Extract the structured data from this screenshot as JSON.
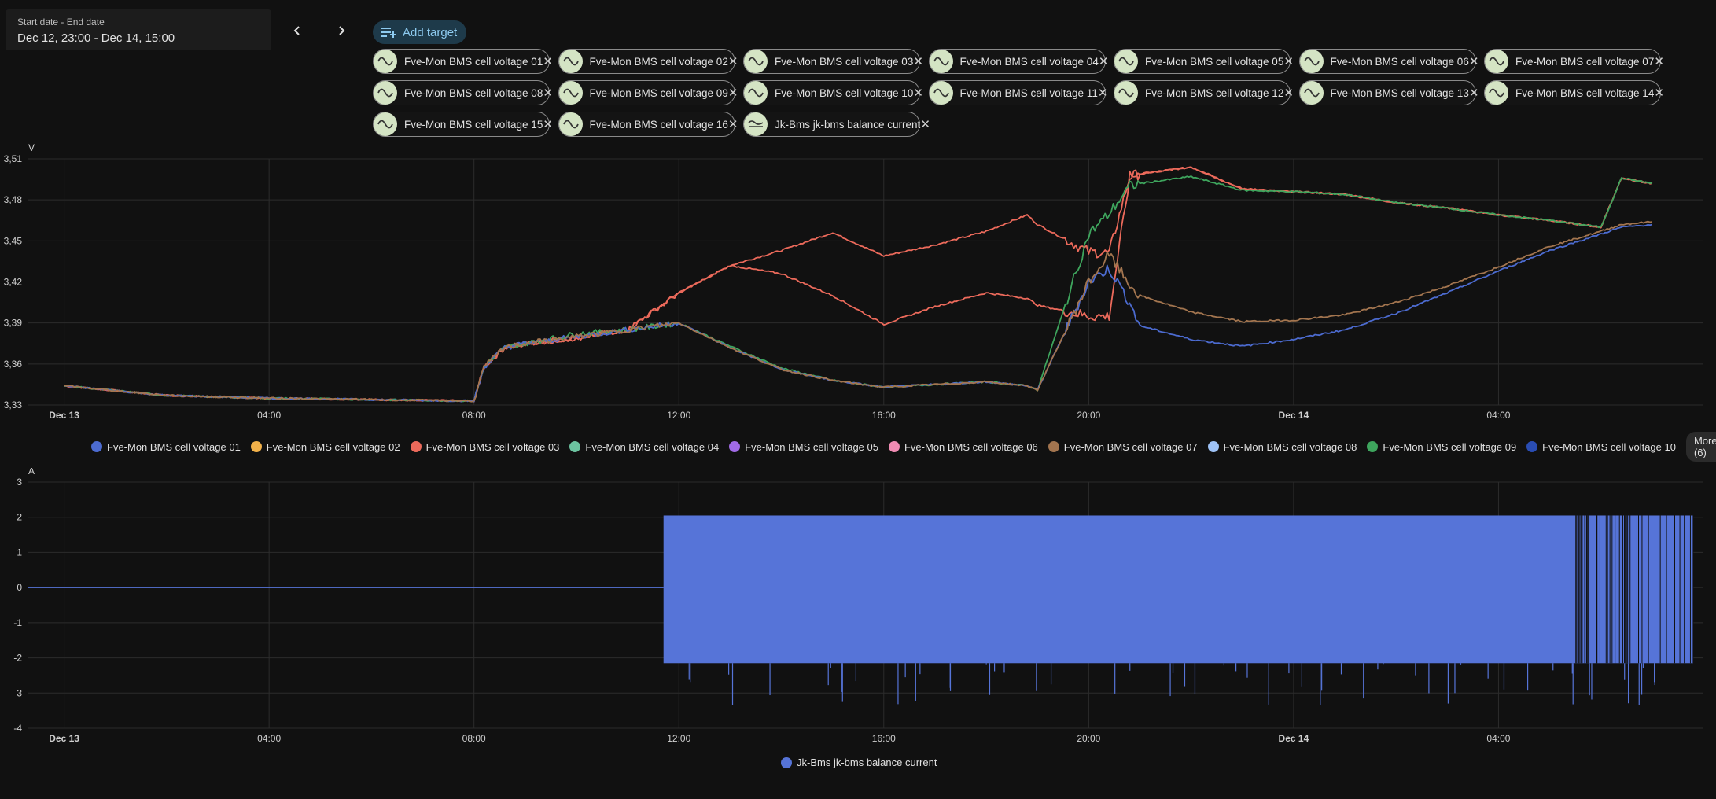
{
  "datepicker": {
    "label": "Start date - End date",
    "value": "Dec 12, 23:00 - Dec 14, 15:00"
  },
  "nav": {
    "prev_icon": "chevron-left-icon",
    "next_icon": "chevron-right-icon"
  },
  "add_target": {
    "label": "Add target",
    "icon": "playlist-plus-icon"
  },
  "chips": [
    "Fve-Mon BMS cell voltage 01",
    "Fve-Mon BMS cell voltage 02",
    "Fve-Mon BMS cell voltage 03",
    "Fve-Mon BMS cell voltage 04",
    "Fve-Mon BMS cell voltage 05",
    "Fve-Mon BMS cell voltage 06",
    "Fve-Mon BMS cell voltage 07",
    "Fve-Mon BMS cell voltage 08",
    "Fve-Mon BMS cell voltage 09",
    "Fve-Mon BMS cell voltage 10",
    "Fve-Mon BMS cell voltage 11",
    "Fve-Mon BMS cell voltage 12",
    "Fve-Mon BMS cell voltage 13",
    "Fve-Mon BMS cell voltage 14",
    "Fve-Mon BMS cell voltage 15",
    "Fve-Mon BMS cell voltage 16",
    "Jk-Bms jk-bms balance current"
  ],
  "colors": {
    "c01": "#4c6bd0",
    "c02": "#f3b24a",
    "c03": "#ec6a5b",
    "c04": "#6cc3a0",
    "c05": "#a16be6",
    "c06": "#f08cb3",
    "c07": "#a3754f",
    "c08": "#9fc3f7",
    "c09": "#3ea55d",
    "c10": "#2a4db3",
    "current": "#5674d8",
    "grid": "#2c2c2c",
    "bg": "#111111"
  },
  "legend_top": {
    "items": [
      "Fve-Mon BMS cell voltage 01",
      "Fve-Mon BMS cell voltage 02",
      "Fve-Mon BMS cell voltage 03",
      "Fve-Mon BMS cell voltage 04",
      "Fve-Mon BMS cell voltage 05",
      "Fve-Mon BMS cell voltage 06",
      "Fve-Mon BMS cell voltage 07",
      "Fve-Mon BMS cell voltage 08",
      "Fve-Mon BMS cell voltage 09",
      "Fve-Mon BMS cell voltage 10"
    ],
    "more_label": "More (6)"
  },
  "legend_bottom": {
    "items": [
      "Jk-Bms jk-bms balance current"
    ]
  },
  "chart_data": [
    {
      "type": "line",
      "title": "",
      "ylabel": "V",
      "ylim": [
        3.33,
        3.51
      ],
      "yticks": [
        "3,51",
        "3,48",
        "3,45",
        "3,42",
        "3,39",
        "3,36",
        "3,33"
      ],
      "x": [
        0,
        2,
        4,
        6,
        8,
        8.2,
        8.6,
        9,
        10,
        11,
        12,
        13,
        14,
        15,
        16,
        17,
        18,
        18.8,
        19,
        20,
        20.4,
        20.8,
        21,
        22,
        23,
        24,
        25,
        26,
        27,
        28,
        29,
        30,
        30.4,
        31
      ],
      "xlabel_ticks": [
        {
          "h": 0,
          "label": "Dec 13",
          "bold": true
        },
        {
          "h": 4,
          "label": "04:00",
          "bold": false
        },
        {
          "h": 8,
          "label": "08:00",
          "bold": false
        },
        {
          "h": 12,
          "label": "12:00",
          "bold": false
        },
        {
          "h": 16,
          "label": "16:00",
          "bold": false
        },
        {
          "h": 20,
          "label": "20:00",
          "bold": false
        },
        {
          "h": 24,
          "label": "Dec 14",
          "bold": true
        },
        {
          "h": 28,
          "label": "04:00",
          "bold": false
        }
      ],
      "xrange_hours": [
        -0.7,
        32.0
      ],
      "series": [
        {
          "name": "Fve-Mon BMS cell voltage 03 (high group)",
          "color": "#ec6a5b",
          "values": [
            3.344,
            3.337,
            3.335,
            3.334,
            3.333,
            3.358,
            3.372,
            3.375,
            3.379,
            3.385,
            3.412,
            3.432,
            3.443,
            3.456,
            3.439,
            3.447,
            3.457,
            3.469,
            3.462,
            3.442,
            3.441,
            3.497,
            3.499,
            3.504,
            3.488,
            3.486,
            3.484,
            3.478,
            3.474,
            3.469,
            3.465,
            3.46,
            3.496,
            3.492
          ]
        },
        {
          "name": "Fve-Mon BMS cell voltage 03 (split)",
          "color": "#ec6a5b",
          "values": [
            3.344,
            3.337,
            3.335,
            3.334,
            3.333,
            3.358,
            3.372,
            3.375,
            3.379,
            3.385,
            3.412,
            3.432,
            3.426,
            3.41,
            3.389,
            3.402,
            3.412,
            3.408,
            3.403,
            3.395,
            3.395,
            3.497,
            3.499,
            3.504,
            3.488,
            3.486,
            3.484,
            3.478,
            3.474,
            3.469,
            3.465,
            3.46,
            3.496,
            3.492
          ]
        },
        {
          "name": "Fve-Mon BMS cell voltage 09 (green)",
          "color": "#3ea55d",
          "values": [
            3.344,
            3.337,
            3.335,
            3.334,
            3.333,
            3.358,
            3.372,
            3.375,
            3.382,
            3.385,
            3.39,
            3.373,
            3.357,
            3.348,
            3.343,
            3.345,
            3.347,
            3.344,
            3.341,
            3.455,
            3.47,
            3.49,
            3.492,
            3.497,
            3.487,
            3.486,
            3.484,
            3.478,
            3.474,
            3.469,
            3.465,
            3.46,
            3.496,
            3.492
          ]
        },
        {
          "name": "Fve-Mon BMS cell voltage 01 (low group)",
          "color": "#4c6bd0",
          "values": [
            3.344,
            3.337,
            3.335,
            3.334,
            3.333,
            3.358,
            3.372,
            3.375,
            3.38,
            3.385,
            3.39,
            3.372,
            3.356,
            3.348,
            3.343,
            3.345,
            3.347,
            3.344,
            3.341,
            3.42,
            3.43,
            3.405,
            3.388,
            3.378,
            3.373,
            3.378,
            3.385,
            3.397,
            3.412,
            3.428,
            3.443,
            3.455,
            3.46,
            3.462
          ]
        },
        {
          "name": "Fve-Mon BMS cell voltage 07 (brown)",
          "color": "#a3754f",
          "values": [
            3.344,
            3.337,
            3.335,
            3.334,
            3.333,
            3.358,
            3.372,
            3.375,
            3.38,
            3.385,
            3.39,
            3.372,
            3.356,
            3.348,
            3.343,
            3.345,
            3.347,
            3.344,
            3.341,
            3.42,
            3.44,
            3.418,
            3.41,
            3.398,
            3.391,
            3.392,
            3.396,
            3.405,
            3.417,
            3.431,
            3.446,
            3.457,
            3.462,
            3.464
          ]
        }
      ]
    },
    {
      "type": "area",
      "title": "",
      "ylabel": "A",
      "ylim": [
        -4,
        3
      ],
      "yticks": [
        "3",
        "2",
        "1",
        "0",
        "-1",
        "-2",
        "-3",
        "-4"
      ],
      "x": [
        -0.7,
        11.6,
        11.7,
        31.8
      ],
      "xlabel_ticks": [
        {
          "h": 0,
          "label": "Dec 13",
          "bold": true
        },
        {
          "h": 4,
          "label": "04:00",
          "bold": false
        },
        {
          "h": 8,
          "label": "08:00",
          "bold": false
        },
        {
          "h": 12,
          "label": "12:00",
          "bold": false
        },
        {
          "h": 16,
          "label": "16:00",
          "bold": false
        },
        {
          "h": 20,
          "label": "20:00",
          "bold": false
        },
        {
          "h": 24,
          "label": "Dec 14",
          "bold": true
        },
        {
          "h": 28,
          "label": "04:00",
          "bold": false
        }
      ],
      "xrange_hours": [
        -0.7,
        32.0
      ],
      "series": [
        {
          "name": "Jk-Bms jk-bms balance current",
          "color": "#5674d8",
          "band_start_hour": 11.7,
          "band_end_hour": 31.8,
          "band_high": 2.05,
          "band_low": -2.15,
          "baseline": 0,
          "spikes_low": -3.4
        }
      ]
    }
  ]
}
